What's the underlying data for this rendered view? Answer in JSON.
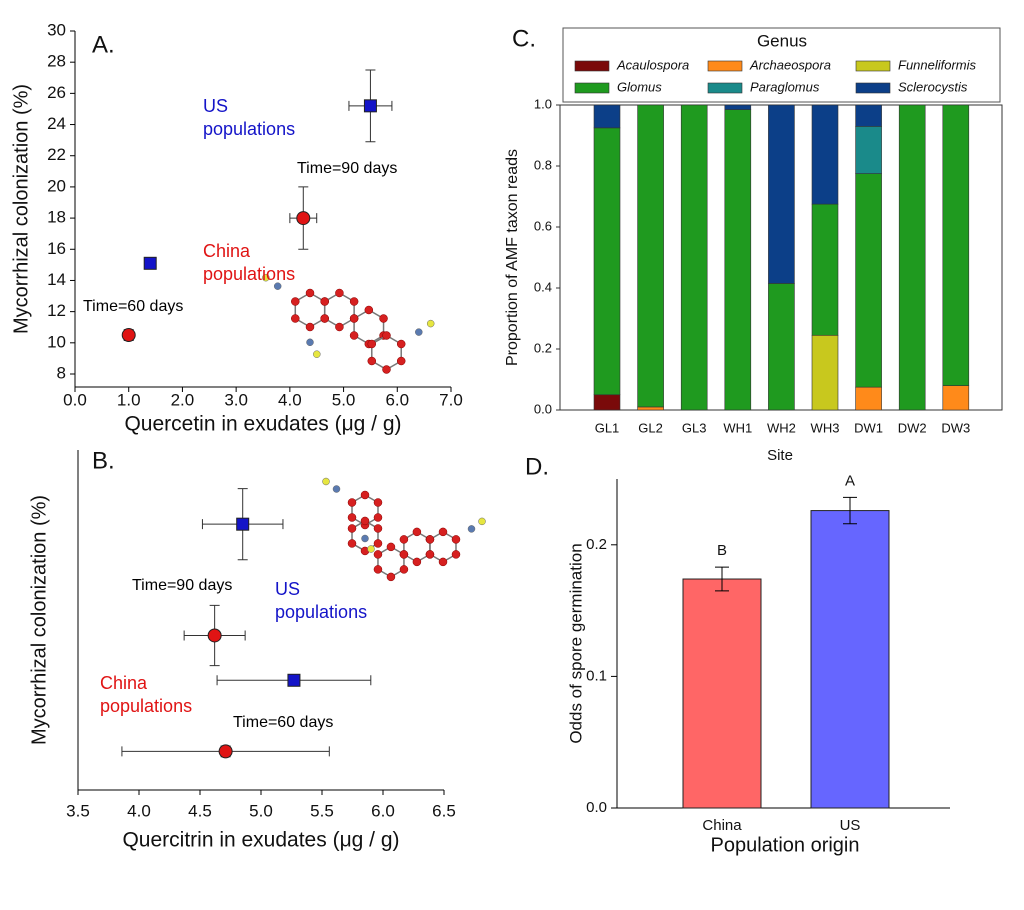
{
  "chart_data": [
    {
      "type": "scatter",
      "label": "A.",
      "xlabel": "Quercetin in exudates (μg / g)",
      "ylabel": "Mycorrhizal colonization (%)",
      "xlim": [
        0,
        7
      ],
      "xticks": [
        {
          "value": 0,
          "label": "0.0"
        },
        {
          "value": 1,
          "label": "1.0"
        },
        {
          "value": 2,
          "label": "2.0"
        },
        {
          "value": 3,
          "label": "3.0"
        },
        {
          "value": 4,
          "label": "4.0"
        },
        {
          "value": 5,
          "label": "5.0"
        },
        {
          "value": 6,
          "label": "6.0"
        },
        {
          "value": 7,
          "label": "7.0"
        }
      ],
      "ylim": [
        8,
        30
      ],
      "yticks": [
        8,
        10,
        12,
        14,
        16,
        18,
        20,
        22,
        24,
        26,
        28,
        30
      ],
      "series": [
        {
          "name": "US populations",
          "color": "#1414c8",
          "marker": "square",
          "x": [
            1.4,
            5.5
          ],
          "values": [
            15.1,
            25.2
          ],
          "xerr": [
            0.07,
            0.4
          ],
          "yerr": [
            0.35,
            2.3
          ]
        },
        {
          "name": "China populations",
          "color": "#e01414",
          "marker": "circle",
          "x": [
            1.0,
            4.25
          ],
          "values": [
            10.5,
            18.0
          ],
          "xerr": [
            0.06,
            0.25
          ],
          "yerr": [
            0.35,
            2.0
          ]
        }
      ],
      "annotations": [
        "Time=90 days",
        "Time=60 days"
      ]
    },
    {
      "type": "scatter",
      "label": "B.",
      "xlabel": "Quercitrin in exudates (μg / g)",
      "ylabel": "Mycorrhizal colonization (%)",
      "xlim": [
        3.5,
        6.5
      ],
      "xticks": [
        3.5,
        {
          "value": 4,
          "label": "4.0"
        },
        4.5,
        {
          "value": 5,
          "label": "5.0"
        },
        5.5,
        {
          "value": 6,
          "label": "6.0"
        },
        6.5
      ],
      "ylim": [
        8,
        30
      ],
      "series": [
        {
          "name": "US populations",
          "color": "#1414c8",
          "marker": "square",
          "x": [
            4.85,
            5.27
          ],
          "values": [
            25.2,
            15.1
          ],
          "xerr": [
            0.33,
            0.63
          ],
          "yerr": [
            2.3,
            0.35
          ]
        },
        {
          "name": "China populations",
          "color": "#e01414",
          "marker": "circle",
          "x": [
            4.62,
            4.71
          ],
          "values": [
            18.0,
            10.5
          ],
          "xerr": [
            0.25,
            0.85
          ],
          "yerr": [
            1.95,
            0.35
          ]
        }
      ],
      "annotations": [
        "Time=90 days",
        "Time=60 days"
      ]
    },
    {
      "type": "stacked_bar",
      "label": "C.",
      "xlabel": "Site",
      "ylabel": "Proportion of AMF taxon reads",
      "legend_title": "Genus",
      "categories": [
        "GL1",
        "GL2",
        "GL3",
        "WH1",
        "WH2",
        "WH3",
        "DW1",
        "DW2",
        "DW3"
      ],
      "ylim": [
        0,
        1
      ],
      "yticks": [
        {
          "value": 0,
          "label": "0.0"
        },
        0.2,
        0.4,
        0.6,
        0.8,
        {
          "value": 1,
          "label": "1.0"
        }
      ],
      "series": [
        {
          "name": "Acaulospora",
          "color": "#7a0a0a",
          "values": [
            0.05,
            0,
            0,
            0,
            0,
            0,
            0,
            0,
            0
          ]
        },
        {
          "name": "Archaeospora",
          "color": "#ff8a1a",
          "values": [
            0,
            0.01,
            0,
            0,
            0,
            0,
            0.075,
            0,
            0.08
          ]
        },
        {
          "name": "Funneliformis",
          "color": "#c8c81e",
          "values": [
            0,
            0,
            0,
            0,
            0,
            0.245,
            0,
            0,
            0
          ]
        },
        {
          "name": "Glomus",
          "color": "#1f9a1f",
          "values": [
            0.875,
            0.99,
            1.0,
            0.985,
            0.415,
            0.43,
            0.7,
            1.0,
            0.92
          ]
        },
        {
          "name": "Paraglomus",
          "color": "#1a8a8a",
          "values": [
            0,
            0,
            0,
            0,
            0,
            0,
            0.155,
            0,
            0
          ]
        },
        {
          "name": "Sclerocystis",
          "color": "#0c3f88",
          "values": [
            0.075,
            0,
            0,
            0.015,
            0.585,
            0.325,
            0.07,
            0,
            0
          ]
        }
      ]
    },
    {
      "type": "bar",
      "label": "D.",
      "xlabel": "Population origin",
      "ylabel": "Odds of spore germination",
      "categories": [
        "China",
        "US"
      ],
      "values": [
        0.174,
        0.226
      ],
      "errors": [
        0.009,
        0.01
      ],
      "letters": [
        "B",
        "A"
      ],
      "colors": [
        "#ff6666",
        "#6666ff"
      ],
      "ylim": [
        0,
        0.25
      ],
      "yticks": [
        {
          "value": 0,
          "label": "0.0"
        },
        0.1,
        0.2
      ]
    }
  ]
}
